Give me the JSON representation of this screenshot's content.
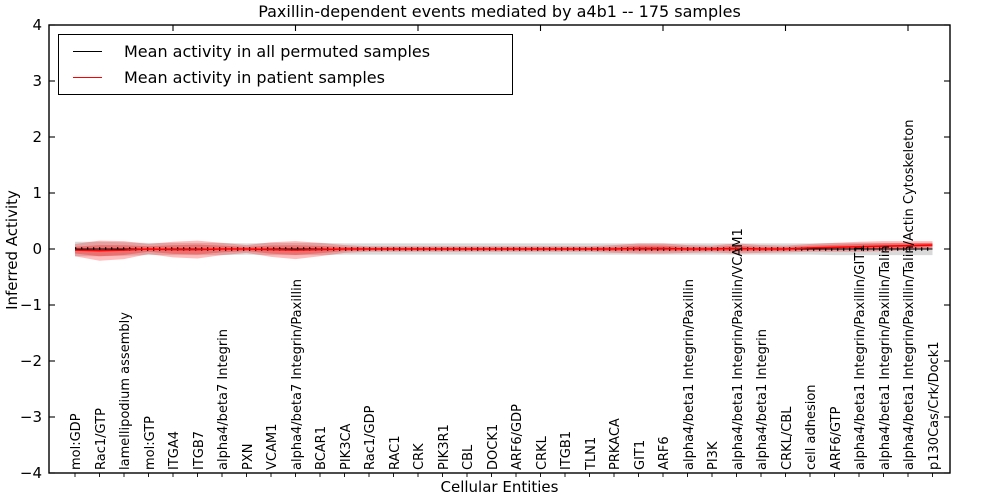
{
  "figure": {
    "title": "Paxillin-dependent events mediated by a4b1 -- 175 samples",
    "xlabel": "Cellular Entities",
    "ylabel": "Inferred Activity"
  },
  "legend": {
    "items": [
      {
        "label": "Mean activity in all permuted samples",
        "color": "#000000"
      },
      {
        "label": "Mean activity in patient samples",
        "color": "#ff0000"
      }
    ]
  },
  "chart_data": {
    "type": "line",
    "title": "Paxillin-dependent events mediated by a4b1 -- 175 samples",
    "xlabel": "Cellular Entities",
    "ylabel": "Inferred Activity",
    "ylim": [
      -4,
      4
    ],
    "yticks": [
      4,
      3,
      2,
      1,
      0,
      -1,
      -2,
      -3,
      -4
    ],
    "grid": false,
    "legend_position": "upper left",
    "categories": [
      "mol:GDP",
      "Rac1/GTP",
      "lamellipodium assembly",
      "mol:GTP",
      "ITGA4",
      "ITGB7",
      "alpha4/beta7 Integrin",
      "PXN",
      "VCAM1",
      "alpha4/beta7 Integrin/Paxillin",
      "BCAR1",
      "PIK3CA",
      "Rac1/GDP",
      "RAC1",
      "CRK",
      "PIK3R1",
      "CBL",
      "DOCK1",
      "ARF6/GDP",
      "CRKL",
      "ITGB1",
      "TLN1",
      "PRKACA",
      "GIT1",
      "ARF6",
      "alpha4/beta1 Integrin/Paxillin",
      "PI3K",
      "alpha4/beta1 Integrin/Paxillin/VCAM1",
      "alpha4/beta1 Integrin",
      "CRKL/CBL",
      "cell adhesion",
      "ARF6/GTP",
      "alpha4/beta1 Integrin/Paxillin/GIT1",
      "alpha4/beta1 Integrin/Paxillin/Talin",
      "alpha4/beta1 Integrin/Paxillin/Talin/Actin Cytoskeleton",
      "p130Cas/Crk/Dock1"
    ],
    "series": [
      {
        "name": "Mean activity in all permuted samples",
        "color": "#000000",
        "line_style": "dotted",
        "band_color": "rgba(0,0,0,0.15)",
        "mean": [
          0,
          0,
          0,
          0,
          0,
          0,
          0,
          0,
          0,
          0,
          0,
          0,
          0,
          0,
          0,
          0,
          0,
          0,
          0,
          0,
          0,
          0,
          0,
          0,
          0,
          0,
          0,
          0,
          0,
          0,
          0,
          0,
          0,
          0,
          0,
          0
        ],
        "band_halfwidth": [
          0.13,
          0.13,
          0.12,
          0.11,
          0.11,
          0.11,
          0.11,
          0.1,
          0.11,
          0.11,
          0.11,
          0.1,
          0.1,
          0.1,
          0.1,
          0.1,
          0.1,
          0.1,
          0.1,
          0.1,
          0.1,
          0.1,
          0.1,
          0.1,
          0.1,
          0.1,
          0.1,
          0.1,
          0.1,
          0.1,
          0.1,
          0.11,
          0.11,
          0.11,
          0.11,
          0.11
        ]
      },
      {
        "name": "Mean activity in patient samples",
        "color": "#ff0000",
        "line_style": "solid",
        "band_color": "rgba(255,0,0,0.26)",
        "mean": [
          -0.02,
          -0.03,
          -0.02,
          0,
          -0.01,
          -0.01,
          0,
          0,
          -0.01,
          -0.02,
          -0.01,
          0,
          0,
          0,
          0,
          0,
          0,
          0,
          0,
          0,
          0,
          0,
          0,
          0.01,
          0.01,
          0,
          0,
          0.01,
          0,
          0,
          0.02,
          0.03,
          0.04,
          0.05,
          0.06,
          0.07
        ],
        "band_halfwidth": [
          0.11,
          0.18,
          0.16,
          0.09,
          0.14,
          0.16,
          0.11,
          0.07,
          0.13,
          0.16,
          0.12,
          0.07,
          0.05,
          0.05,
          0.05,
          0.05,
          0.05,
          0.05,
          0.05,
          0.05,
          0.05,
          0.05,
          0.07,
          0.09,
          0.09,
          0.07,
          0.06,
          0.09,
          0.07,
          0.06,
          0.07,
          0.08,
          0.09,
          0.09,
          0.08,
          0.07
        ]
      }
    ]
  }
}
